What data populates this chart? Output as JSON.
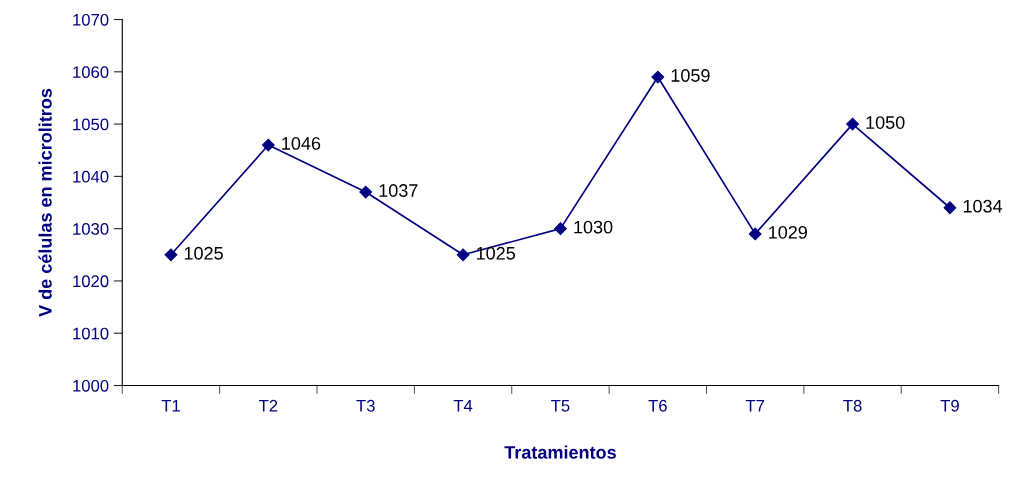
{
  "chart_data": {
    "type": "line",
    "xlabel": "Tratamientos",
    "ylabel": "V de células en microlitros",
    "categories": [
      "T1",
      "T2",
      "T3",
      "T4",
      "T5",
      "T6",
      "T7",
      "T8",
      "T9"
    ],
    "series": [
      {
        "color": "#000080",
        "values": [
          1025,
          1046,
          1037,
          1025,
          1030,
          1059,
          1029,
          1050,
          1034
        ]
      }
    ],
    "ylim": [
      1000,
      1070
    ],
    "yticks": [
      1000,
      1010,
      1020,
      1030,
      1040,
      1050,
      1060,
      1070
    ],
    "data_labels": true,
    "marker": "diamond",
    "line_style": "solid",
    "grid": false,
    "legend": false
  }
}
